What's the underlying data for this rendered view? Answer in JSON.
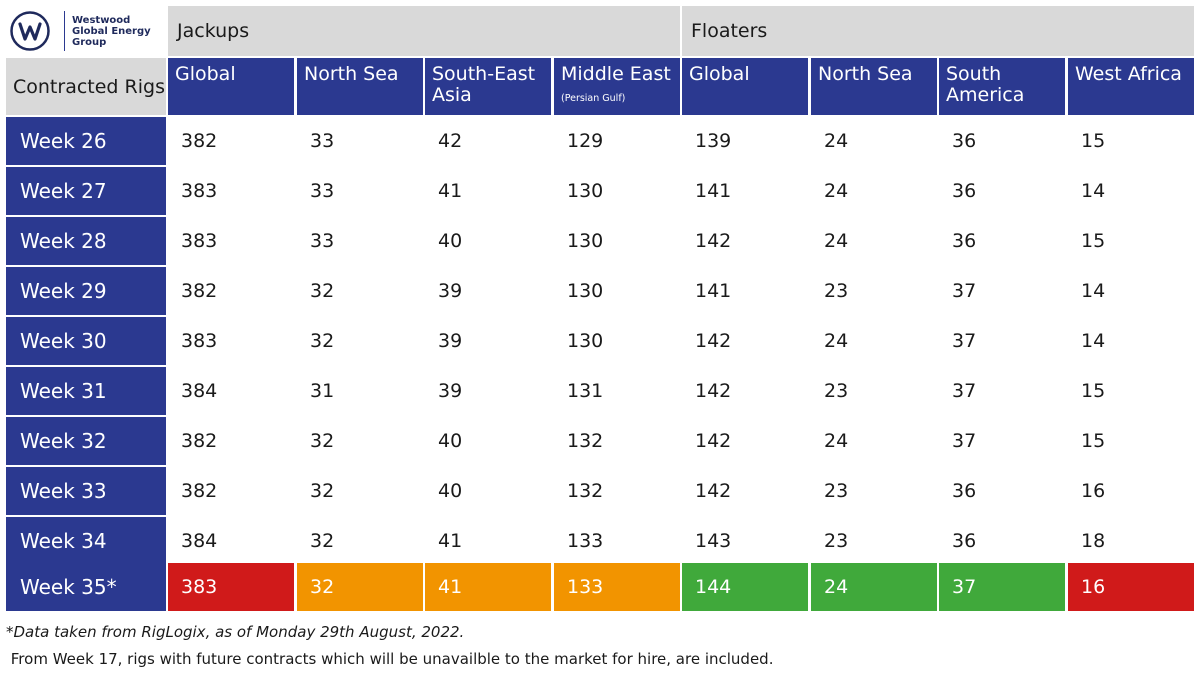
{
  "logo": {
    "letter": "W",
    "lines": [
      "Westwood",
      "Global Energy",
      "Group"
    ]
  },
  "groups": {
    "jackups": "Jackups",
    "floaters": "Floaters"
  },
  "corner_label": "Contracted Rigs",
  "columns": [
    {
      "main": "Global",
      "small": ""
    },
    {
      "main": "North Sea",
      "small": ""
    },
    {
      "main": "South-East Asia",
      "small": ""
    },
    {
      "main": "Middle East",
      "small": "(Persian Gulf)"
    },
    {
      "main": "Global",
      "small": ""
    },
    {
      "main": "North Sea",
      "small": ""
    },
    {
      "main": "South America",
      "small": ""
    },
    {
      "main": "West Africa",
      "small": ""
    }
  ],
  "rows": [
    {
      "label": "Week 26",
      "values": [
        "382",
        "33",
        "42",
        "129",
        "139",
        "24",
        "36",
        "15"
      ]
    },
    {
      "label": "Week 27",
      "values": [
        "383",
        "33",
        "41",
        "130",
        "141",
        "24",
        "36",
        "14"
      ]
    },
    {
      "label": "Week 28",
      "values": [
        "383",
        "33",
        "40",
        "130",
        "142",
        "24",
        "36",
        "15"
      ]
    },
    {
      "label": "Week 29",
      "values": [
        "382",
        "32",
        "39",
        "130",
        "141",
        "23",
        "37",
        "14"
      ]
    },
    {
      "label": "Week 30",
      "values": [
        "383",
        "32",
        "39",
        "130",
        "142",
        "24",
        "37",
        "14"
      ]
    },
    {
      "label": "Week 31",
      "values": [
        "384",
        "31",
        "39",
        "131",
        "142",
        "23",
        "37",
        "15"
      ]
    },
    {
      "label": "Week 32",
      "values": [
        "382",
        "32",
        "40",
        "132",
        "142",
        "24",
        "37",
        "15"
      ]
    },
    {
      "label": "Week 33",
      "values": [
        "382",
        "32",
        "40",
        "132",
        "142",
        "23",
        "36",
        "16"
      ]
    },
    {
      "label": "Week 34",
      "values": [
        "384",
        "32",
        "41",
        "133",
        "143",
        "23",
        "36",
        "18"
      ]
    }
  ],
  "latest": {
    "label": "Week 35*",
    "values": [
      "383",
      "32",
      "41",
      "133",
      "144",
      "24",
      "37",
      "16"
    ],
    "status": [
      "red",
      "orange",
      "orange",
      "orange",
      "green",
      "green",
      "green",
      "red"
    ]
  },
  "status_colors": {
    "red": "#d01a1a",
    "orange": "#f29400",
    "green": "#40a93b"
  },
  "footnotes": [
    "*Data taken from RigLogix, as of Monday 29th August, 2022.",
    " From Week 17, rigs with future contracts which will be unavailble to the market for hire, are included."
  ]
}
